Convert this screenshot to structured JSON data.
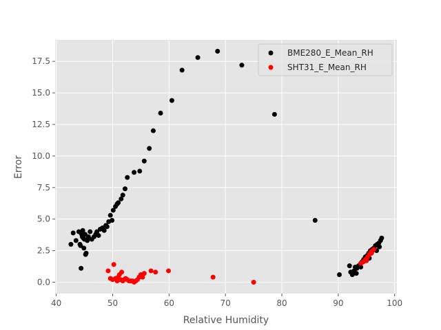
{
  "chart_data": {
    "type": "scatter",
    "title": "",
    "xlabel": "Relative Humidity",
    "ylabel": "Error",
    "xlim": [
      39.8,
      100.4
    ],
    "ylim": [
      -0.9,
      19.2
    ],
    "xticks": [
      40,
      50,
      60,
      70,
      80,
      90,
      100
    ],
    "yticks": [
      0.0,
      2.5,
      5.0,
      7.5,
      10.0,
      12.5,
      15.0,
      17.5
    ],
    "xtick_labels": [
      "40",
      "50",
      "60",
      "70",
      "80",
      "90",
      "100"
    ],
    "ytick_labels": [
      "0.0",
      "2.5",
      "5.0",
      "7.5",
      "10.0",
      "12.5",
      "15.0",
      "17.5"
    ],
    "grid": true,
    "legend_position": "top-right",
    "series": [
      {
        "name": "BME280_E_Mean_RH",
        "color": "#000000",
        "points": [
          [
            42.6,
            3.0
          ],
          [
            43.0,
            3.9
          ],
          [
            43.5,
            3.3
          ],
          [
            44.0,
            4.0
          ],
          [
            44.2,
            3.0
          ],
          [
            44.3,
            2.9
          ],
          [
            44.4,
            1.1
          ],
          [
            44.5,
            3.8
          ],
          [
            44.6,
            3.6
          ],
          [
            44.7,
            4.1
          ],
          [
            44.8,
            3.5
          ],
          [
            44.9,
            2.7
          ],
          [
            45.0,
            3.4
          ],
          [
            45.1,
            3.8
          ],
          [
            45.2,
            2.2
          ],
          [
            45.3,
            2.3
          ],
          [
            45.5,
            3.3
          ],
          [
            45.7,
            3.6
          ],
          [
            46.0,
            4.0
          ],
          [
            46.3,
            3.4
          ],
          [
            46.7,
            3.6
          ],
          [
            47.0,
            3.8
          ],
          [
            47.2,
            4.0
          ],
          [
            47.5,
            3.7
          ],
          [
            47.8,
            4.2
          ],
          [
            48.2,
            4.3
          ],
          [
            48.5,
            4.1
          ],
          [
            48.8,
            4.5
          ],
          [
            49.0,
            4.4
          ],
          [
            49.3,
            4.8
          ],
          [
            49.6,
            5.3
          ],
          [
            49.9,
            4.9
          ],
          [
            50.1,
            5.7
          ],
          [
            50.5,
            6.0
          ],
          [
            50.8,
            6.2
          ],
          [
            51.0,
            6.3
          ],
          [
            51.5,
            6.6
          ],
          [
            51.8,
            6.9
          ],
          [
            52.2,
            7.4
          ],
          [
            52.6,
            8.3
          ],
          [
            53.8,
            8.7
          ],
          [
            54.8,
            8.8
          ],
          [
            55.6,
            9.6
          ],
          [
            56.5,
            10.6
          ],
          [
            57.2,
            12.0
          ],
          [
            58.5,
            13.4
          ],
          [
            60.5,
            14.4
          ],
          [
            62.3,
            16.8
          ],
          [
            65.1,
            17.8
          ],
          [
            68.6,
            18.3
          ],
          [
            72.9,
            17.2
          ],
          [
            78.7,
            13.3
          ],
          [
            85.9,
            4.9
          ],
          [
            90.2,
            0.6
          ],
          [
            92.0,
            1.3
          ],
          [
            92.2,
            0.8
          ],
          [
            92.5,
            0.6
          ],
          [
            92.8,
            0.9
          ],
          [
            93.0,
            1.2
          ],
          [
            93.3,
            1.1
          ],
          [
            93.6,
            1.3
          ],
          [
            93.9,
            1.4
          ],
          [
            94.2,
            1.6
          ],
          [
            94.5,
            1.8
          ],
          [
            94.8,
            2.0
          ],
          [
            95.1,
            2.1
          ],
          [
            95.4,
            2.3
          ],
          [
            95.7,
            2.5
          ],
          [
            96.0,
            2.6
          ],
          [
            96.3,
            2.7
          ],
          [
            96.6,
            2.9
          ],
          [
            96.9,
            3.0
          ],
          [
            97.2,
            3.1
          ],
          [
            97.5,
            3.3
          ],
          [
            97.7,
            3.5
          ],
          [
            96.8,
            2.5
          ],
          [
            97.3,
            2.8
          ],
          [
            95.5,
            1.9
          ],
          [
            94.0,
            1.2
          ],
          [
            93.2,
            0.7
          ]
        ]
      },
      {
        "name": "SHT31_E_Mean_RH",
        "color": "#ff0000",
        "points": [
          [
            49.2,
            0.9
          ],
          [
            49.6,
            0.3
          ],
          [
            50.0,
            0.2
          ],
          [
            50.2,
            1.4
          ],
          [
            50.5,
            0.3
          ],
          [
            50.8,
            0.1
          ],
          [
            51.0,
            0.4
          ],
          [
            51.2,
            0.6
          ],
          [
            51.4,
            0.2
          ],
          [
            51.6,
            0.8
          ],
          [
            51.8,
            0.1
          ],
          [
            52.0,
            0.2
          ],
          [
            52.3,
            0.3
          ],
          [
            52.6,
            0.2
          ],
          [
            52.9,
            0.1
          ],
          [
            53.2,
            0.1
          ],
          [
            53.5,
            0.1
          ],
          [
            53.8,
            0.0
          ],
          [
            54.1,
            0.1
          ],
          [
            54.4,
            0.2
          ],
          [
            54.7,
            0.4
          ],
          [
            55.0,
            0.6
          ],
          [
            55.3,
            0.4
          ],
          [
            55.6,
            0.7
          ],
          [
            56.8,
            0.9
          ],
          [
            57.6,
            0.8
          ],
          [
            59.9,
            0.9
          ],
          [
            67.8,
            0.4
          ],
          [
            75.0,
            0.0
          ],
          [
            94.0,
            1.5
          ],
          [
            94.4,
            1.6
          ],
          [
            94.8,
            1.8
          ],
          [
            95.2,
            2.0
          ],
          [
            95.5,
            2.2
          ],
          [
            95.8,
            2.4
          ],
          [
            96.1,
            2.5
          ],
          [
            96.3,
            2.6
          ],
          [
            95.0,
            1.7
          ],
          [
            95.9,
            2.3
          ]
        ]
      }
    ]
  }
}
